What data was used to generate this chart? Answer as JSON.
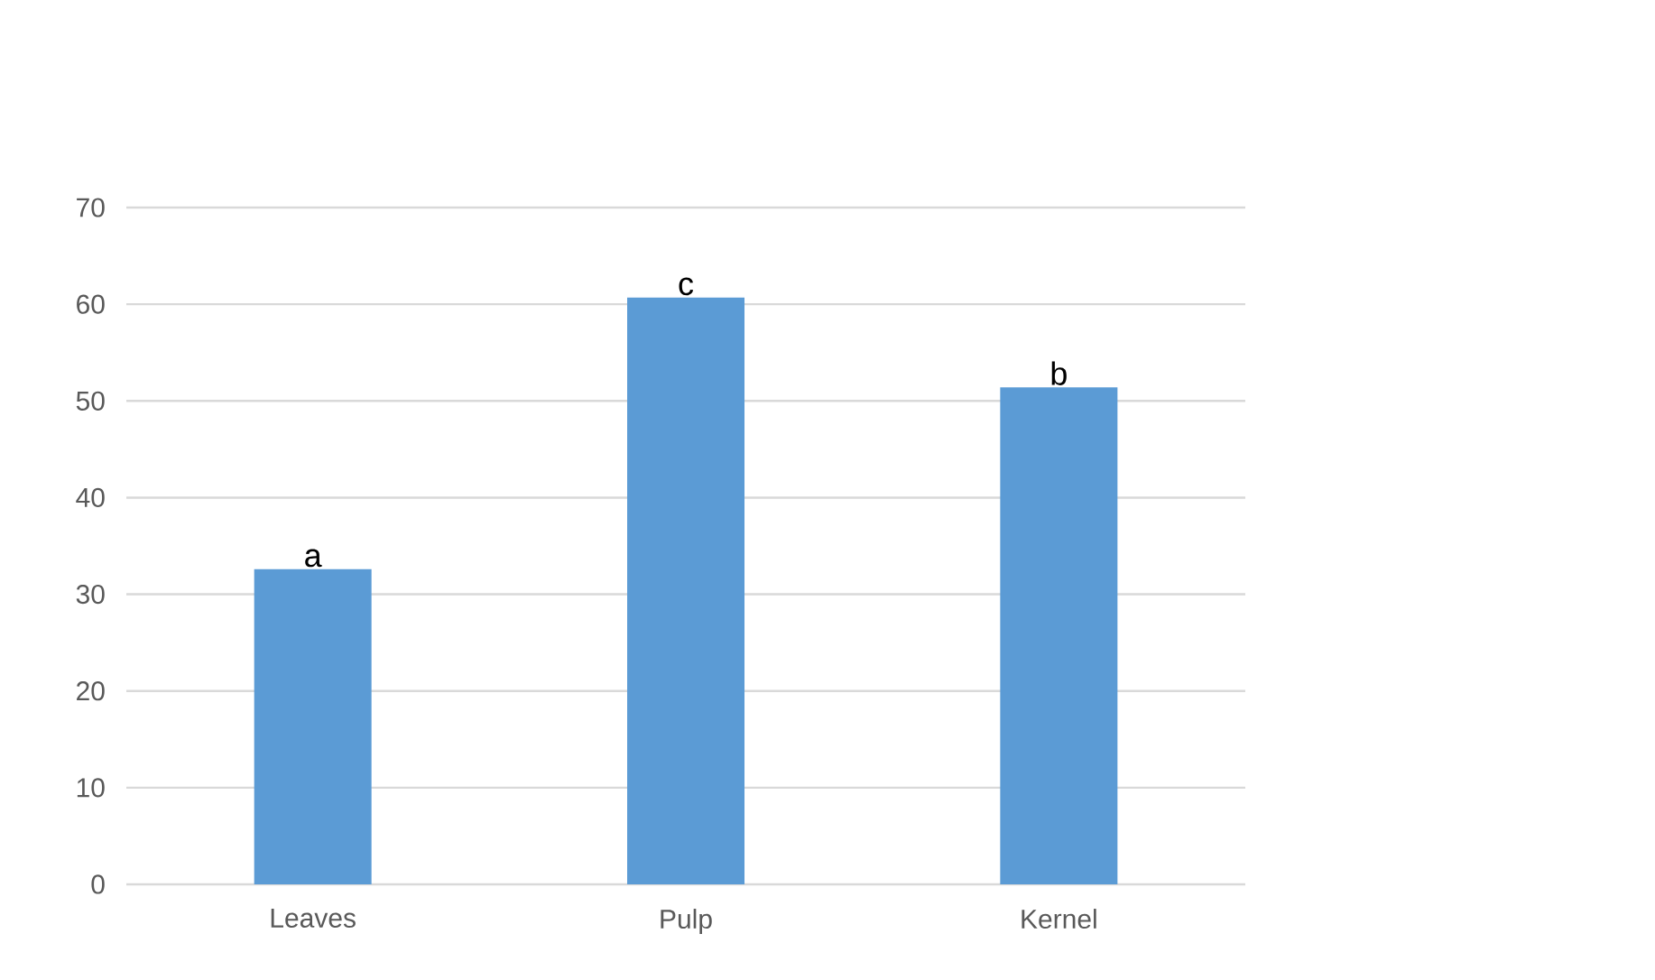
{
  "chart_data": {
    "type": "bar",
    "categories": [
      "Leaves",
      "Pulp",
      "Kernel"
    ],
    "values": [
      32.6,
      60.7,
      51.4
    ],
    "color": "#5b9bd5",
    "ylim": [
      0,
      70
    ],
    "yticks": [
      0,
      10,
      20,
      30,
      40,
      50,
      60,
      70
    ],
    "grid": "y",
    "annotations": [
      {
        "text": "a",
        "x": "Leaves",
        "y": 32.6
      },
      {
        "text": "c",
        "x": "Pulp",
        "y": 60.7
      },
      {
        "text": "b",
        "x": "Kernel",
        "y": 51.4
      }
    ]
  }
}
